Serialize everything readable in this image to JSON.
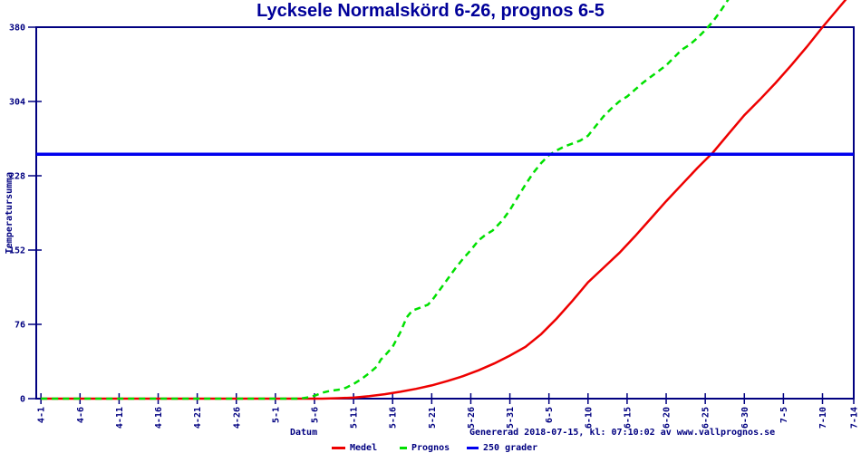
{
  "title": "Lycksele Normalskörd 6-26, prognos 6-5",
  "footer": {
    "generated": "Genererad 2018-07-15, kl: 07:10:02 av www.vallprognos.se"
  },
  "colors": {
    "navy": "#000080",
    "title": "#000099",
    "medel": "#ee0000",
    "prognos": "#00e000",
    "threshold": "#0000ee",
    "background": "#ffffff"
  },
  "legend": {
    "items": [
      {
        "label": "Medel",
        "color_key": "medel",
        "style": "solid"
      },
      {
        "label": "Prognos",
        "color_key": "prognos",
        "style": "dashed"
      },
      {
        "label": "250 grader",
        "color_key": "threshold",
        "style": "solid"
      }
    ]
  },
  "chart_data": {
    "type": "line",
    "title": "Lycksele Normalskörd 6-26, prognos 6-5",
    "xlabel": "Datum",
    "ylabel": "Temperatursumma",
    "ylim": [
      0,
      380
    ],
    "y_ticks": [
      0,
      76,
      152,
      228,
      304,
      380
    ],
    "x_tick_labels": [
      "4-1",
      "4-6",
      "4-11",
      "4-16",
      "4-21",
      "4-26",
      "5-1",
      "5-6",
      "5-11",
      "5-16",
      "5-21",
      "5-26",
      "5-31",
      "6-5",
      "6-10",
      "6-15",
      "6-20",
      "6-25",
      "6-30",
      "7-5",
      "7-10",
      "7-14"
    ],
    "x_tick_days": [
      0,
      5,
      10,
      15,
      20,
      25,
      30,
      35,
      40,
      45,
      50,
      55,
      60,
      65,
      70,
      75,
      80,
      85,
      90,
      95,
      100,
      104
    ],
    "x_range_days": [
      -0.6,
      104
    ],
    "grid": false,
    "legend_position": "bottom",
    "threshold_value": 250,
    "series": [
      {
        "name": "Medel",
        "color_key": "medel",
        "style": "solid",
        "width": 2.5,
        "points": [
          [
            0,
            0
          ],
          [
            15,
            0
          ],
          [
            30,
            0
          ],
          [
            34,
            0
          ],
          [
            36,
            0
          ],
          [
            38,
            0.5
          ],
          [
            40,
            1
          ],
          [
            42,
            2.5
          ],
          [
            44,
            4.5
          ],
          [
            46,
            7
          ],
          [
            48,
            10
          ],
          [
            50,
            13.5
          ],
          [
            52,
            18
          ],
          [
            54,
            23
          ],
          [
            56,
            29
          ],
          [
            58,
            36
          ],
          [
            60,
            44
          ],
          [
            62,
            53
          ],
          [
            64,
            66
          ],
          [
            66,
            82
          ],
          [
            68,
            100
          ],
          [
            70,
            119
          ],
          [
            72,
            134
          ],
          [
            74,
            149
          ],
          [
            76,
            166
          ],
          [
            78,
            184
          ],
          [
            80,
            202
          ],
          [
            82,
            219
          ],
          [
            84,
            236
          ],
          [
            86,
            252
          ],
          [
            88,
            271
          ],
          [
            90,
            290
          ],
          [
            92,
            306
          ],
          [
            94,
            323
          ],
          [
            96,
            341
          ],
          [
            98,
            360
          ],
          [
            100,
            380
          ],
          [
            102,
            399
          ],
          [
            104,
            418
          ]
        ]
      },
      {
        "name": "Prognos",
        "color_key": "prognos",
        "style": "dashed",
        "width": 2.5,
        "points": [
          [
            0,
            0
          ],
          [
            15,
            0
          ],
          [
            30,
            0
          ],
          [
            33,
            0
          ],
          [
            34,
            1
          ],
          [
            35,
            3
          ],
          [
            36,
            6
          ],
          [
            37,
            8
          ],
          [
            38,
            9
          ],
          [
            39,
            11
          ],
          [
            40,
            15
          ],
          [
            41,
            20
          ],
          [
            42,
            26
          ],
          [
            43,
            33
          ],
          [
            43.5,
            40
          ],
          [
            44,
            44
          ],
          [
            45,
            53
          ],
          [
            46,
            68
          ],
          [
            46.8,
            83
          ],
          [
            47.5,
            90
          ],
          [
            48.5,
            93
          ],
          [
            49.5,
            96
          ],
          [
            50,
            100
          ],
          [
            51,
            111
          ],
          [
            52,
            122
          ],
          [
            53,
            133
          ],
          [
            54,
            143
          ],
          [
            55,
            152
          ],
          [
            56,
            162
          ],
          [
            56.8,
            167
          ],
          [
            57.8,
            172
          ],
          [
            59,
            182
          ],
          [
            60,
            193
          ],
          [
            61,
            206
          ],
          [
            62,
            219
          ],
          [
            63,
            231
          ],
          [
            64,
            241
          ],
          [
            65,
            249
          ],
          [
            66,
            254
          ],
          [
            67,
            258
          ],
          [
            68,
            261
          ],
          [
            69,
            264
          ],
          [
            70,
            269
          ],
          [
            71,
            279
          ],
          [
            72,
            289
          ],
          [
            73,
            297
          ],
          [
            74,
            304
          ],
          [
            75,
            309
          ],
          [
            76,
            316
          ],
          [
            77,
            323
          ],
          [
            78,
            329
          ],
          [
            79,
            335
          ],
          [
            80,
            341
          ],
          [
            81,
            349
          ],
          [
            82,
            357
          ],
          [
            83,
            362
          ],
          [
            84,
            369
          ],
          [
            85,
            377
          ],
          [
            86,
            386
          ],
          [
            87,
            397
          ],
          [
            88,
            409
          ]
        ]
      },
      {
        "name": "250 grader",
        "color_key": "threshold",
        "style": "solid",
        "width": 3.5,
        "points": [
          [
            -0.6,
            250
          ],
          [
            104,
            250
          ]
        ]
      }
    ]
  }
}
